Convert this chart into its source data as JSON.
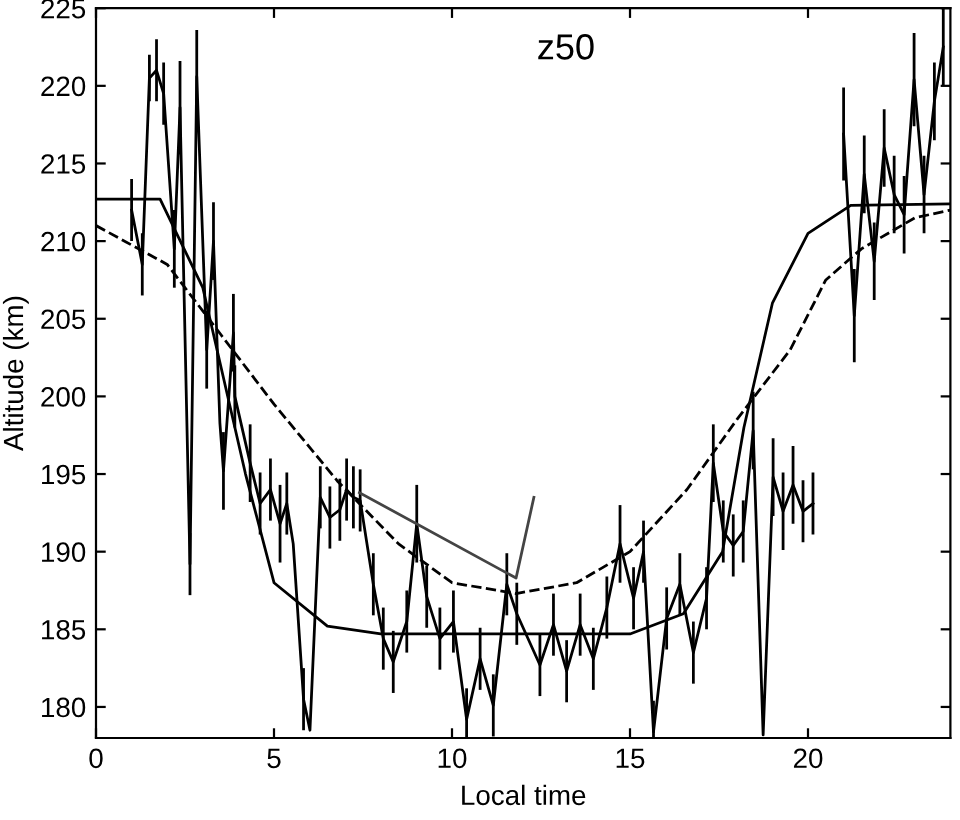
{
  "chart_data": {
    "type": "line",
    "xlabel": "Local time",
    "ylabel": "Altitude (km)",
    "annotations": [
      "z50"
    ],
    "xlim": [
      0,
      24
    ],
    "ylim": [
      178,
      225
    ],
    "xticks": [
      0,
      5,
      10,
      15,
      20
    ],
    "yticks": [
      180,
      185,
      190,
      195,
      200,
      205,
      210,
      215,
      220,
      225
    ],
    "grid": false,
    "legend": false,
    "marker": "none",
    "series": [
      {
        "color": "#000000",
        "line_style": "solid",
        "x": [
          1.0,
          1.3,
          1.5,
          1.7,
          1.9,
          2.2,
          2.36,
          2.64,
          2.83,
          3.11,
          3.3,
          3.48,
          3.58,
          3.86,
          3.9,
          4.33,
          4.61,
          4.9,
          5.17,
          5.36,
          5.54,
          5.83,
          6.01,
          6.3,
          6.57,
          6.85,
          7.04,
          7.23,
          7.42,
          7.79,
          8.07,
          8.35,
          8.73,
          9.01,
          9.29,
          9.66,
          10.04,
          10.41,
          10.79,
          11.16,
          11.54,
          11.82,
          12.47,
          12.85,
          13.22,
          13.6,
          13.97,
          14.35,
          14.72,
          15.1,
          15.38,
          15.66,
          16.03,
          16.4,
          16.78,
          17.15,
          17.34,
          17.62,
          17.9,
          18.18,
          18.46,
          18.74,
          19.02,
          19.3,
          19.58,
          19.86,
          20.14,
          20.5,
          21.0,
          21.3,
          21.58,
          21.86,
          22.14,
          22.42,
          22.7,
          22.98,
          23.26,
          23.55,
          23.8
        ],
        "values": [
          212,
          208.5,
          220.5,
          221,
          219.5,
          209.5,
          218.6,
          189.2,
          220.6,
          203,
          210,
          198.3,
          195.2,
          204.1,
          200,
          195.7,
          193.1,
          194,
          191.8,
          193.1,
          190.5,
          180.5,
          178.5,
          193.5,
          192.2,
          192.7,
          194,
          193.5,
          193.3,
          187.9,
          184.4,
          182.9,
          185.5,
          191.8,
          187.1,
          184.4,
          185.5,
          179.2,
          183.1,
          180.1,
          187.9,
          186,
          182.7,
          185.3,
          182.3,
          185.3,
          183.1,
          186.4,
          190.5,
          187,
          190,
          178.4,
          185.7,
          187.9,
          183.5,
          187,
          195.7,
          191.3,
          190.4,
          191.3,
          197.8,
          178.2,
          194.8,
          192.6,
          194.3,
          192.6,
          193.1,
          null,
          216.9,
          205.2,
          214.3,
          208.7,
          216,
          213,
          211.7,
          220.4,
          213,
          219,
          222.5
        ],
        "errors": [
          2,
          2,
          1.5,
          2,
          2,
          2.5,
          3,
          2,
          3,
          2.5,
          2.5,
          null,
          2.5,
          2.5,
          2,
          2.5,
          2,
          2,
          2.5,
          2,
          null,
          2,
          null,
          2,
          2,
          2,
          2,
          2,
          2,
          2,
          2,
          2,
          2,
          2.5,
          2,
          2,
          2,
          2,
          2,
          2,
          2,
          2,
          2,
          2,
          2,
          2,
          2,
          2,
          2.5,
          2,
          2,
          2,
          2,
          2,
          2,
          2,
          2.5,
          2,
          2,
          2,
          2.5,
          null,
          2.5,
          2.5,
          2.5,
          2,
          2,
          null,
          3,
          3,
          2.5,
          2.5,
          2.5,
          2.5,
          2.5,
          3,
          2.5,
          2.5,
          2.5
        ]
      },
      {
        "color": "#444444",
        "line_style": "solid",
        "x": [
          7.4,
          11.8,
          12.3
        ],
        "values": [
          193.8,
          188.3,
          193.5
        ]
      },
      {
        "color": "#000000",
        "line_style": "solid",
        "x": [
          0,
          1.8,
          3,
          4.2,
          5,
          6.5,
          8,
          15,
          16.5,
          17.6,
          18.2,
          19,
          20,
          21.2,
          24
        ],
        "values": [
          212.7,
          212.7,
          207,
          195,
          188,
          185.2,
          184.7,
          184.7,
          186,
          190,
          198,
          206,
          210.5,
          212.3,
          212.4
        ]
      },
      {
        "color": "#000000",
        "line_style": "dashed",
        "x": [
          0,
          2,
          3.5,
          5,
          6.8,
          8.5,
          10,
          11.8,
          13.5,
          15,
          16.6,
          18,
          19.5,
          20.5,
          21.5,
          23,
          24
        ],
        "values": [
          211,
          208.5,
          204,
          199.5,
          194.5,
          190.5,
          188,
          187.3,
          188,
          190,
          194,
          198.5,
          203,
          207.5,
          209.5,
          211.5,
          212
        ]
      }
    ]
  }
}
